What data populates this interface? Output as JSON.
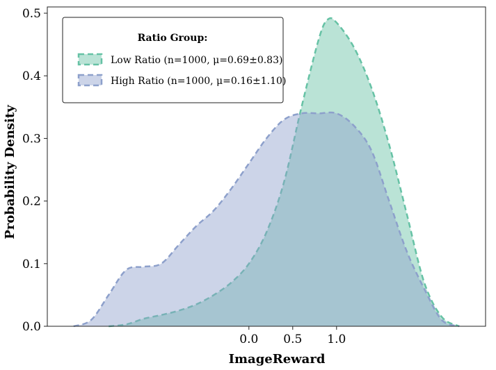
{
  "chart_data": {
    "type": "area",
    "title": "",
    "xlabel": "ImageReward",
    "ylabel": "Probability Density",
    "xlim": [
      -2.3,
      2.7
    ],
    "ylim": [
      0,
      0.51
    ],
    "x_ticks": [
      "0.0",
      "0.5",
      "1.0"
    ],
    "x_tick_values": [
      0.0,
      0.5,
      1.0
    ],
    "y_ticks": [
      "0.0",
      "0.1",
      "0.2",
      "0.3",
      "0.4",
      "0.5"
    ],
    "y_tick_values": [
      0.0,
      0.1,
      0.2,
      0.3,
      0.4,
      0.5
    ],
    "grid": false,
    "legend": {
      "title": "Ratio Group:",
      "placement": "top-left"
    },
    "series": [
      {
        "name": "Low Ratio (n=1000, μ=0.69±0.83)",
        "color": "#66c2a5",
        "x": [
          -1.6,
          -1.4,
          -1.2,
          -1.0,
          -0.8,
          -0.6,
          -0.4,
          -0.2,
          0.0,
          0.2,
          0.4,
          0.6,
          0.8,
          0.9,
          1.0,
          1.2,
          1.4,
          1.6,
          1.8,
          2.0,
          2.2,
          2.4
        ],
        "y": [
          0.0,
          0.003,
          0.012,
          0.018,
          0.025,
          0.035,
          0.05,
          0.07,
          0.1,
          0.15,
          0.23,
          0.35,
          0.46,
          0.49,
          0.485,
          0.445,
          0.38,
          0.29,
          0.18,
          0.07,
          0.015,
          0.0
        ]
      },
      {
        "name": "High Ratio (n=1000, μ=0.16±1.10)",
        "color": "#8da0cb",
        "x": [
          -2.0,
          -1.8,
          -1.6,
          -1.4,
          -1.2,
          -1.0,
          -0.8,
          -0.6,
          -0.4,
          -0.2,
          0.0,
          0.2,
          0.4,
          0.6,
          0.8,
          1.0,
          1.2,
          1.4,
          1.6,
          1.8,
          2.0,
          2.2,
          2.4
        ],
        "y": [
          0.0,
          0.01,
          0.05,
          0.09,
          0.095,
          0.1,
          0.13,
          0.16,
          0.185,
          0.22,
          0.26,
          0.3,
          0.33,
          0.34,
          0.34,
          0.34,
          0.32,
          0.28,
          0.2,
          0.12,
          0.06,
          0.01,
          0.0
        ]
      }
    ]
  }
}
